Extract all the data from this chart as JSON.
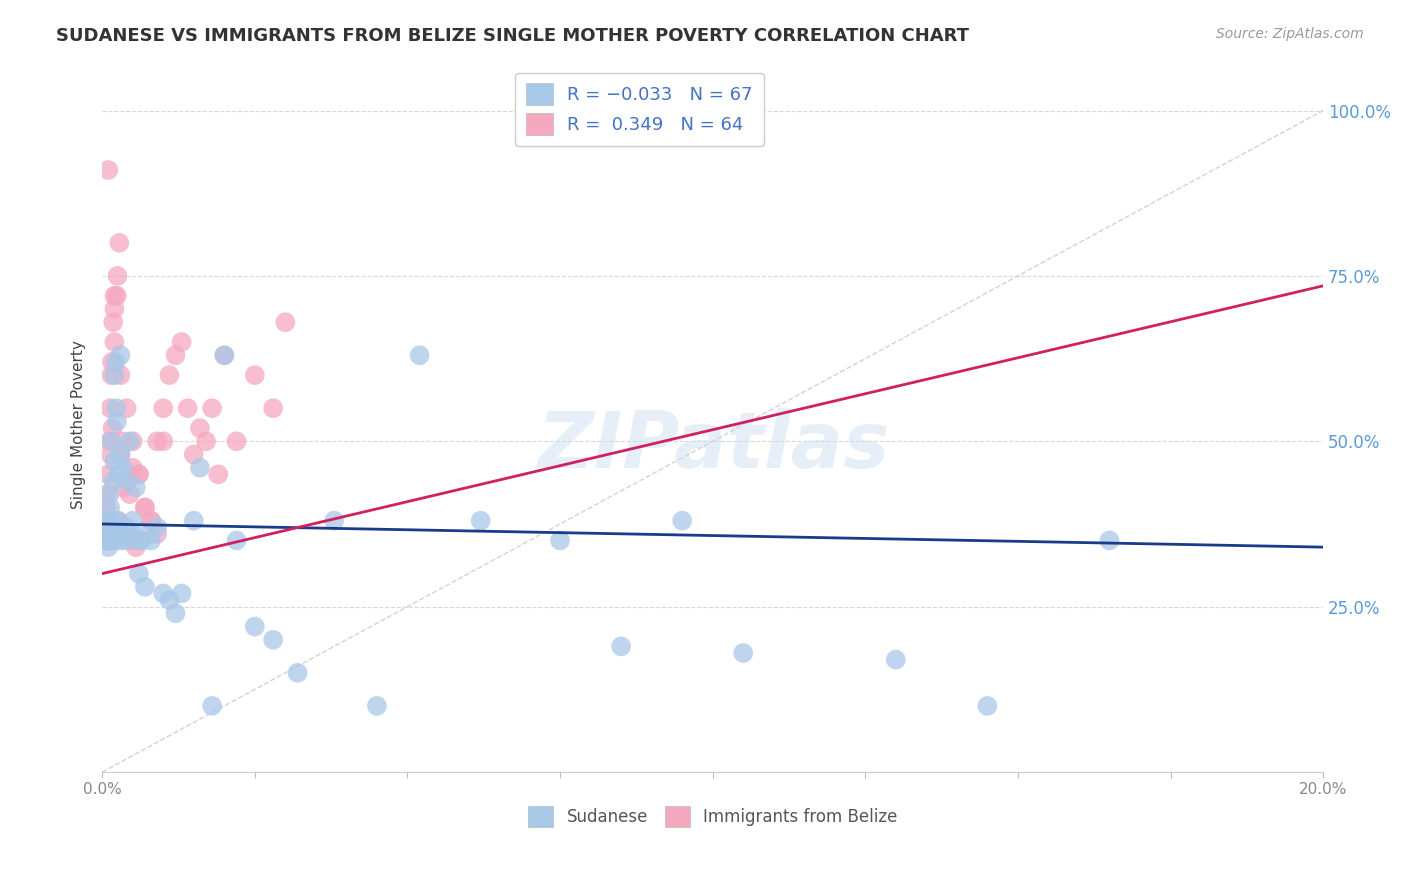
{
  "title": "SUDANESE VS IMMIGRANTS FROM BELIZE SINGLE MOTHER POVERTY CORRELATION CHART",
  "source": "Source: ZipAtlas.com",
  "ylabel": "Single Mother Poverty",
  "watermark": "ZIPatlas",
  "xlim": [
    0.0,
    0.2
  ],
  "ylim": [
    0.0,
    1.05
  ],
  "blue_marker_color": "#a8c8e8",
  "pink_marker_color": "#f4a8c0",
  "blue_line_color": "#1a3a8a",
  "pink_line_color": "#d02060",
  "diag_color": "#c8c8c8",
  "right_axis_color": "#5b9bd5",
  "legend_text_color": "#4472c4",
  "legend_r_color": "#4472c4",
  "blue_patch_color": "#a8c8e8",
  "pink_patch_color": "#f4a8c0",
  "title_color": "#333333",
  "source_color": "#999999",
  "ylabel_color": "#444444",
  "grid_color": "#d8d8d8",
  "xtick_color": "#888888",
  "sudanese_x": [
    0.0005,
    0.0006,
    0.0008,
    0.001,
    0.001,
    0.001,
    0.0012,
    0.0013,
    0.0014,
    0.0015,
    0.0015,
    0.0016,
    0.0017,
    0.0018,
    0.002,
    0.002,
    0.002,
    0.002,
    0.0022,
    0.0023,
    0.0024,
    0.0025,
    0.0026,
    0.0027,
    0.003,
    0.003,
    0.003,
    0.0032,
    0.0034,
    0.0035,
    0.004,
    0.004,
    0.0042,
    0.0045,
    0.005,
    0.005,
    0.0055,
    0.006,
    0.006,
    0.0065,
    0.007,
    0.0075,
    0.008,
    0.009,
    0.01,
    0.011,
    0.012,
    0.013,
    0.015,
    0.016,
    0.018,
    0.02,
    0.022,
    0.025,
    0.028,
    0.032,
    0.038,
    0.045,
    0.052,
    0.062,
    0.075,
    0.085,
    0.095,
    0.105,
    0.13,
    0.145,
    0.165
  ],
  "sudanese_y": [
    0.36,
    0.35,
    0.37,
    0.38,
    0.34,
    0.36,
    0.42,
    0.4,
    0.38,
    0.5,
    0.35,
    0.37,
    0.36,
    0.44,
    0.36,
    0.35,
    0.47,
    0.6,
    0.62,
    0.55,
    0.53,
    0.38,
    0.36,
    0.45,
    0.35,
    0.48,
    0.63,
    0.36,
    0.46,
    0.37,
    0.35,
    0.44,
    0.36,
    0.5,
    0.36,
    0.38,
    0.43,
    0.35,
    0.3,
    0.35,
    0.28,
    0.36,
    0.35,
    0.37,
    0.27,
    0.26,
    0.24,
    0.27,
    0.38,
    0.46,
    0.1,
    0.63,
    0.35,
    0.22,
    0.2,
    0.15,
    0.38,
    0.1,
    0.63,
    0.38,
    0.35,
    0.19,
    0.38,
    0.18,
    0.17,
    0.1,
    0.35
  ],
  "belize_x": [
    0.0003,
    0.0005,
    0.0006,
    0.0007,
    0.0008,
    0.0009,
    0.001,
    0.001,
    0.001,
    0.0012,
    0.0013,
    0.0014,
    0.0015,
    0.0016,
    0.0017,
    0.0018,
    0.002,
    0.002,
    0.002,
    0.0022,
    0.0024,
    0.0025,
    0.0026,
    0.0028,
    0.003,
    0.003,
    0.0032,
    0.0035,
    0.004,
    0.004,
    0.0042,
    0.0045,
    0.005,
    0.005,
    0.0055,
    0.006,
    0.007,
    0.008,
    0.009,
    0.01,
    0.011,
    0.012,
    0.013,
    0.014,
    0.015,
    0.016,
    0.017,
    0.018,
    0.019,
    0.02,
    0.022,
    0.025,
    0.028,
    0.03,
    0.001,
    0.002,
    0.003,
    0.004,
    0.005,
    0.006,
    0.007,
    0.008,
    0.009,
    0.01
  ],
  "belize_y": [
    0.36,
    0.38,
    0.4,
    0.42,
    0.37,
    0.35,
    0.36,
    0.38,
    0.45,
    0.5,
    0.55,
    0.48,
    0.6,
    0.62,
    0.52,
    0.68,
    0.35,
    0.65,
    0.7,
    0.36,
    0.72,
    0.75,
    0.38,
    0.8,
    0.36,
    0.48,
    0.5,
    0.43,
    0.37,
    0.44,
    0.36,
    0.42,
    0.35,
    0.46,
    0.34,
    0.45,
    0.4,
    0.38,
    0.5,
    0.55,
    0.6,
    0.63,
    0.65,
    0.55,
    0.48,
    0.52,
    0.5,
    0.55,
    0.45,
    0.63,
    0.5,
    0.6,
    0.55,
    0.68,
    0.91,
    0.72,
    0.6,
    0.55,
    0.5,
    0.45,
    0.4,
    0.38,
    0.36,
    0.5
  ],
  "blue_trend_x": [
    0.0,
    0.2
  ],
  "blue_trend_y": [
    0.375,
    0.34
  ],
  "pink_trend_x": [
    0.0,
    0.2
  ],
  "pink_trend_y": [
    0.3,
    0.735
  ]
}
